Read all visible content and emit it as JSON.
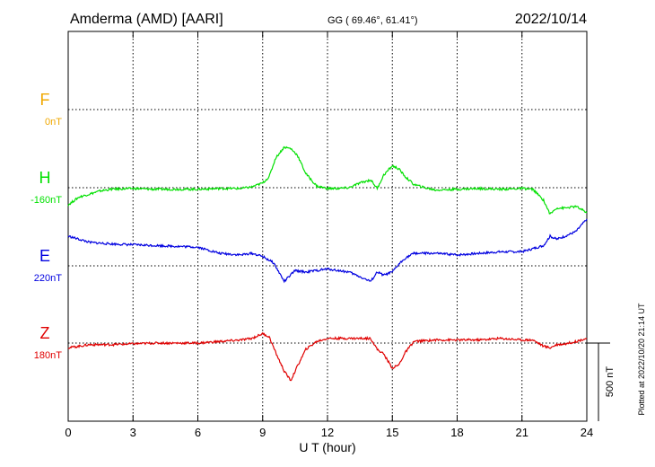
{
  "header": {
    "station": "Amderma (AMD)  [AARI]",
    "coords": "GG ( 69.46°,  61.41°)",
    "date": "2022/10/14"
  },
  "footer": {
    "plotted": "Plotted at 2022/10/20 21:14 UT"
  },
  "chart_data": {
    "type": "line",
    "title": "Amderma (AMD)  [AARI]",
    "xlabel": "U T (hour)",
    "xlim": [
      0,
      24
    ],
    "x_ticks": [
      0,
      3,
      6,
      9,
      12,
      15,
      18,
      21,
      24
    ],
    "scale_bar": {
      "label": "500 nT",
      "value_nT": 500
    },
    "grid": true,
    "panel_spacing_nT": 500,
    "series": [
      {
        "name": "F",
        "baseline_label": "0nT",
        "color": "#f0a800",
        "x": [],
        "y": []
      },
      {
        "name": "H",
        "baseline_label": "-160nT",
        "color": "#00e000",
        "x": [
          0,
          0.5,
          1,
          1.5,
          2,
          3,
          4,
          5,
          6,
          7,
          8,
          8.5,
          9,
          9.3,
          9.6,
          10,
          10.3,
          10.6,
          11,
          11.5,
          12,
          12.5,
          13,
          13.5,
          14,
          14.3,
          14.6,
          15,
          15.3,
          15.6,
          16,
          16.5,
          17,
          18,
          19,
          20,
          21,
          21.5,
          22,
          22.3,
          22.6,
          23,
          23.5,
          24
        ],
        "y": [
          -110,
          -60,
          -40,
          -20,
          -10,
          -5,
          -10,
          -10,
          -10,
          -5,
          -5,
          5,
          30,
          70,
          190,
          260,
          250,
          210,
          90,
          10,
          -5,
          -5,
          0,
          30,
          50,
          -5,
          80,
          140,
          120,
          70,
          20,
          0,
          -15,
          -10,
          -5,
          -10,
          -5,
          -10,
          -80,
          -170,
          -130,
          -130,
          -120,
          -160
        ]
      },
      {
        "name": "E",
        "baseline_label": "220nT",
        "color": "#0000e0",
        "x": [
          0,
          0.5,
          1,
          2,
          3,
          4,
          5,
          6,
          7,
          8,
          8.5,
          9,
          9.5,
          10,
          10.5,
          11,
          11.5,
          12,
          12.5,
          13,
          13.5,
          14,
          14.3,
          14.6,
          15,
          15.3,
          15.6,
          16,
          17,
          18,
          19,
          20,
          21,
          21.5,
          22,
          22.3,
          22.6,
          23,
          23.5,
          24
        ],
        "y": [
          190,
          170,
          150,
          140,
          135,
          130,
          125,
          120,
          80,
          70,
          80,
          60,
          20,
          -100,
          -30,
          -40,
          -30,
          -20,
          -30,
          -40,
          -70,
          -100,
          -40,
          -60,
          -40,
          10,
          50,
          80,
          80,
          70,
          80,
          90,
          90,
          110,
          130,
          190,
          170,
          190,
          220,
          300
        ]
      },
      {
        "name": "Z",
        "baseline_label": "180nT",
        "color": "#e00000",
        "x": [
          0,
          0.5,
          1,
          2,
          3,
          4,
          5,
          6,
          7,
          8,
          8.5,
          9,
          9.3,
          9.6,
          10,
          10.3,
          10.6,
          11,
          11.5,
          12,
          12.5,
          13,
          13.5,
          14,
          14.3,
          14.6,
          15,
          15.3,
          15.6,
          16,
          17,
          18,
          19,
          20,
          21,
          21.5,
          22,
          22.3,
          22.6,
          23,
          23.5,
          24
        ],
        "y": [
          -30,
          -20,
          -10,
          -10,
          -5,
          0,
          0,
          0,
          10,
          20,
          30,
          60,
          40,
          -60,
          -180,
          -240,
          -150,
          -40,
          10,
          30,
          30,
          30,
          30,
          30,
          -40,
          -70,
          -160,
          -140,
          -60,
          10,
          20,
          20,
          20,
          30,
          20,
          20,
          -20,
          -30,
          -10,
          -5,
          10,
          30
        ]
      }
    ]
  }
}
